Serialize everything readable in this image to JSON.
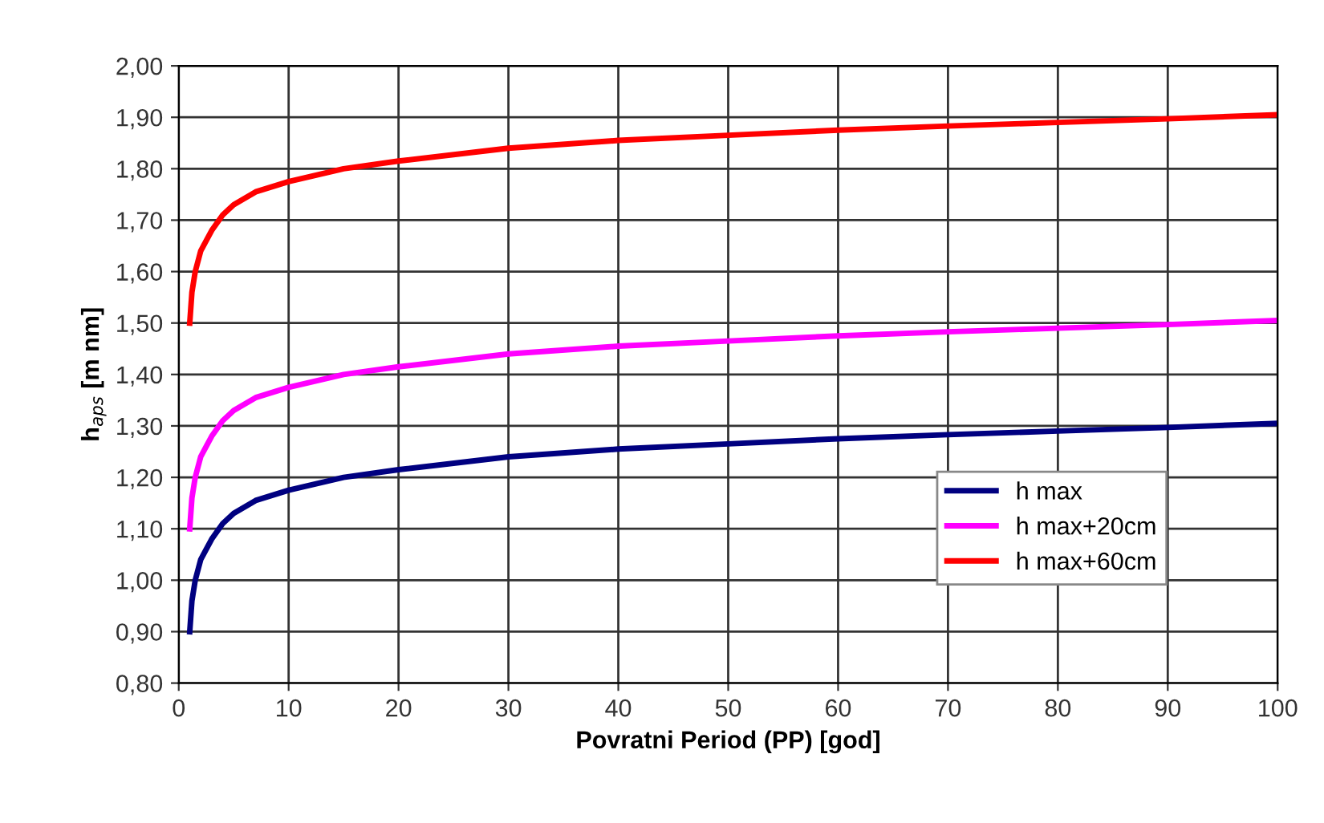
{
  "chart_data": {
    "type": "line",
    "xlabel": "Povratni Period (PP) [god]",
    "ylabel": "h$_{aps}$ [m nm]",
    "x": [
      1,
      1.2,
      1.5,
      2,
      3,
      4,
      5,
      7,
      10,
      15,
      20,
      30,
      40,
      50,
      60,
      70,
      80,
      90,
      100
    ],
    "series": [
      {
        "name": "h max",
        "color": "#000080",
        "values": [
          0.9,
          0.96,
          1.0,
          1.04,
          1.08,
          1.11,
          1.13,
          1.155,
          1.175,
          1.2,
          1.215,
          1.24,
          1.255,
          1.265,
          1.275,
          1.283,
          1.29,
          1.297,
          1.305
        ]
      },
      {
        "name": "h max+20cm",
        "color": "#ff00ff",
        "values": [
          1.1,
          1.16,
          1.2,
          1.24,
          1.28,
          1.31,
          1.33,
          1.355,
          1.375,
          1.4,
          1.415,
          1.44,
          1.455,
          1.465,
          1.475,
          1.483,
          1.49,
          1.497,
          1.505
        ]
      },
      {
        "name": "h max+60cm",
        "color": "#ff0000",
        "values": [
          1.5,
          1.56,
          1.6,
          1.64,
          1.68,
          1.71,
          1.73,
          1.755,
          1.775,
          1.8,
          1.815,
          1.84,
          1.855,
          1.865,
          1.875,
          1.883,
          1.89,
          1.897,
          1.905
        ]
      }
    ],
    "xlim": [
      0,
      100
    ],
    "xticks": [
      0,
      10,
      20,
      30,
      40,
      50,
      60,
      70,
      80,
      90,
      100
    ],
    "ylim": [
      0.8,
      2.0
    ],
    "yticks": [
      {
        "value": 0.8,
        "label": "0,80"
      },
      {
        "value": 0.9,
        "label": "0,90"
      },
      {
        "value": 1.0,
        "label": "1,00"
      },
      {
        "value": 1.1,
        "label": "1,10"
      },
      {
        "value": 1.2,
        "label": "1,20"
      },
      {
        "value": 1.3,
        "label": "1,30"
      },
      {
        "value": 1.4,
        "label": "1,40"
      },
      {
        "value": 1.5,
        "label": "1,50"
      },
      {
        "value": 1.6,
        "label": "1,60"
      },
      {
        "value": 1.7,
        "label": "1,70"
      },
      {
        "value": 1.8,
        "label": "1,80"
      },
      {
        "value": 1.9,
        "label": "1,90"
      },
      {
        "value": 2.0,
        "label": "2,00"
      }
    ],
    "grid": true,
    "legend": "bottom right",
    "marker": "none",
    "line_style": "solid"
  }
}
